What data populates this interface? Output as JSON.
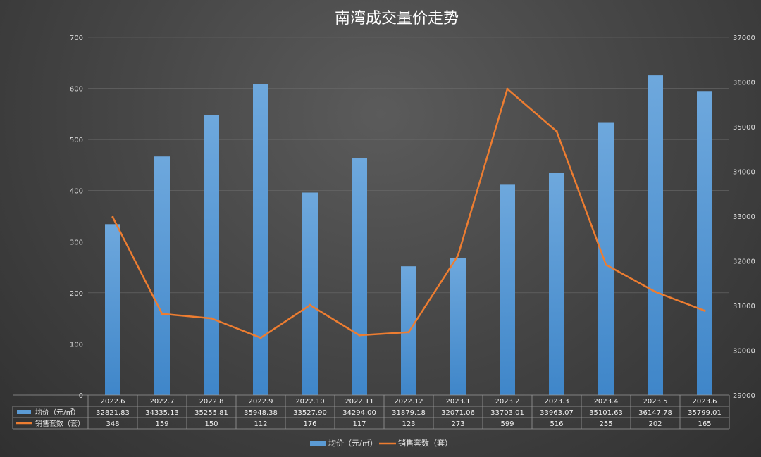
{
  "chart_data": {
    "type": "bar",
    "title": "南湾成交量价走势",
    "categories": [
      "2022.6",
      "2022.7",
      "2022.8",
      "2022.9",
      "2022.10",
      "2022.11",
      "2022.12",
      "2023.1",
      "2023.2",
      "2023.3",
      "2023.4",
      "2023.5",
      "2023.6"
    ],
    "left_axis": {
      "min": 0,
      "max": 700,
      "ticks": [
        0,
        100,
        200,
        300,
        400,
        500,
        600,
        700
      ]
    },
    "right_axis": {
      "min": 29000,
      "max": 37000,
      "ticks": [
        29000,
        30000,
        31000,
        32000,
        33000,
        34000,
        35000,
        36000,
        37000
      ]
    },
    "series": [
      {
        "name": "均价（元/㎡）",
        "type": "bar",
        "color": "#5b9bd5",
        "values": [
          32821.83,
          34335.13,
          35255.81,
          35948.38,
          33527.9,
          34294.0,
          31879.18,
          32071.06,
          33703.01,
          33963.07,
          35101.63,
          36147.78,
          35799.01
        ],
        "labels": [
          "32821.83",
          "34335.13",
          "35255.81",
          "35948.38",
          "33527.90",
          "34294.00",
          "31879.18",
          "32071.06",
          "33703.01",
          "33963.07",
          "35101.63",
          "36147.78",
          "35799.01"
        ]
      },
      {
        "name": "销售套数（套）",
        "type": "line",
        "color": "#ed7d31",
        "values": [
          348,
          159,
          150,
          112,
          176,
          117,
          123,
          273,
          599,
          516,
          255,
          202,
          165
        ],
        "labels": [
          "348",
          "159",
          "150",
          "112",
          "176",
          "117",
          "123",
          "273",
          "599",
          "516",
          "255",
          "202",
          "165"
        ]
      }
    ],
    "legend_position": "bottom",
    "grid": true
  }
}
